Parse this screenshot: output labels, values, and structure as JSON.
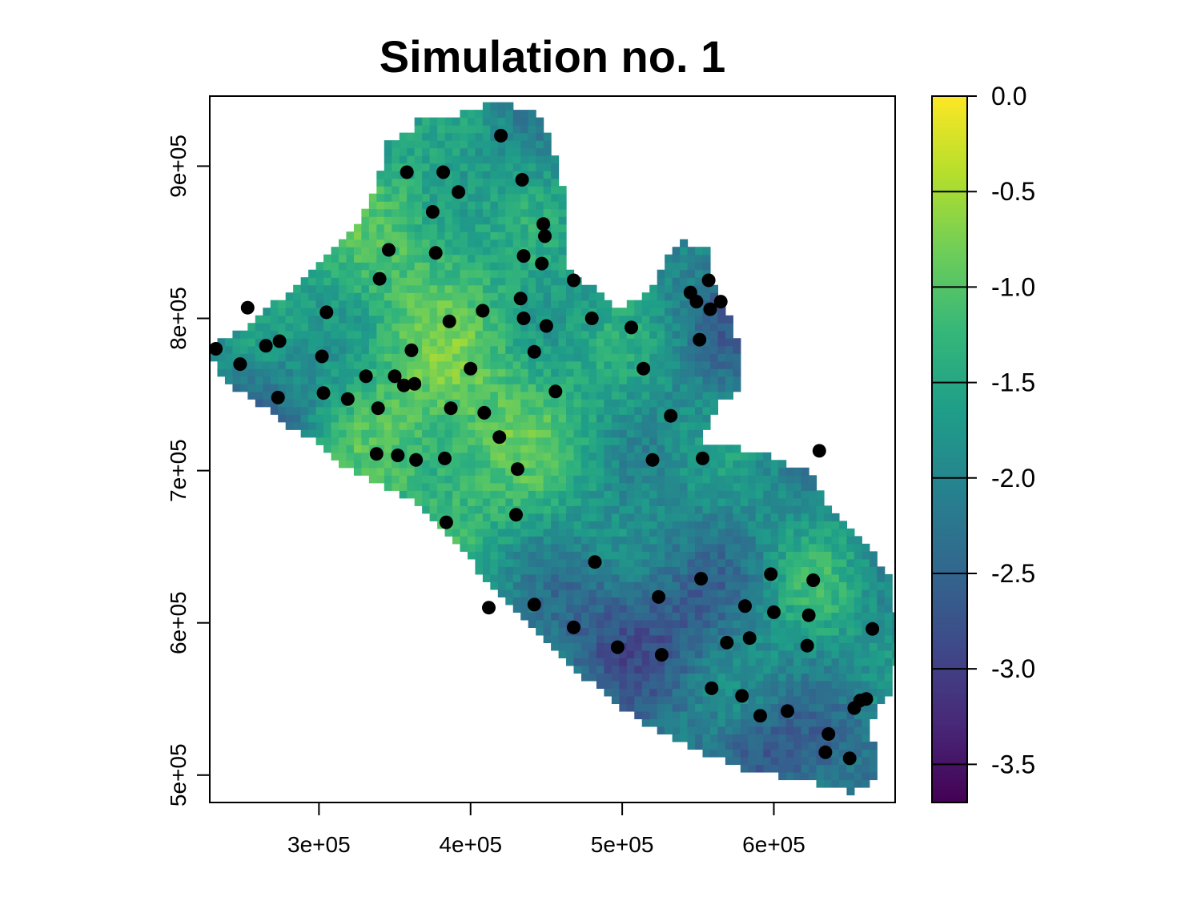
{
  "chart_data": {
    "type": "heatmap",
    "title": "Simulation no. 1",
    "xlabel": "",
    "ylabel": "",
    "xlim": [
      228000,
      680000
    ],
    "ylim": [
      482000,
      946000
    ],
    "x_ticks": [
      300000,
      400000,
      500000,
      600000
    ],
    "x_tick_labels": [
      "3e+05",
      "4e+05",
      "5e+05",
      "6e+05"
    ],
    "y_ticks": [
      500000,
      600000,
      700000,
      800000,
      900000
    ],
    "y_tick_labels": [
      "5e+05",
      "6e+05",
      "7e+05",
      "8e+05",
      "9e+05"
    ],
    "colorbar": {
      "palette": "viridis",
      "colors": [
        "#440154",
        "#482878",
        "#3E4A89",
        "#31688E",
        "#26828E",
        "#1F9E89",
        "#35B779",
        "#6DCD59",
        "#B4DE2C",
        "#FDE725"
      ],
      "range": [
        -3.7,
        0.0
      ],
      "ticks": [
        0.0,
        -0.5,
        -1.0,
        -1.5,
        -2.0,
        -2.5,
        -3.0,
        -3.5
      ],
      "tick_labels": [
        "0.0",
        "-0.5",
        "-1.0",
        "-1.5",
        "-2.0",
        "-2.5",
        "-3.0",
        "-3.5"
      ]
    },
    "region_boundary": [
      [
        228000,
        780000
      ],
      [
        240000,
        788000
      ],
      [
        255000,
        797000
      ],
      [
        268000,
        808000
      ],
      [
        282000,
        820000
      ],
      [
        298000,
        832000
      ],
      [
        310000,
        846000
      ],
      [
        325000,
        862000
      ],
      [
        338000,
        885000
      ],
      [
        345000,
        918000
      ],
      [
        360000,
        922000
      ],
      [
        365000,
        932000
      ],
      [
        400000,
        935000
      ],
      [
        420000,
        944000
      ],
      [
        448000,
        932000
      ],
      [
        458000,
        900000
      ],
      [
        465000,
        870000
      ],
      [
        465000,
        835000
      ],
      [
        480000,
        820000
      ],
      [
        500000,
        805000
      ],
      [
        520000,
        822000
      ],
      [
        528000,
        838000
      ],
      [
        540000,
        850000
      ],
      [
        555000,
        848000
      ],
      [
        560000,
        825000
      ],
      [
        572000,
        800000
      ],
      [
        578000,
        780000
      ],
      [
        578000,
        756000
      ],
      [
        562000,
        742000
      ],
      [
        552000,
        720000
      ],
      [
        574000,
        716000
      ],
      [
        595000,
        710000
      ],
      [
        622000,
        700000
      ],
      [
        635000,
        680000
      ],
      [
        650000,
        662000
      ],
      [
        662000,
        650000
      ],
      [
        676000,
        630000
      ],
      [
        682000,
        600000
      ],
      [
        680000,
        560000
      ],
      [
        664000,
        535000
      ],
      [
        668000,
        500000
      ],
      [
        652000,
        488000
      ],
      [
        632000,
        494000
      ],
      [
        620000,
        496000
      ],
      [
        600000,
        500000
      ],
      [
        578000,
        505000
      ],
      [
        560000,
        512000
      ],
      [
        535000,
        522000
      ],
      [
        505000,
        540000
      ],
      [
        480000,
        560000
      ],
      [
        455000,
        582000
      ],
      [
        432000,
        606000
      ],
      [
        410000,
        628000
      ],
      [
        392000,
        652000
      ],
      [
        378000,
        665000
      ],
      [
        362000,
        680000
      ],
      [
        340000,
        690000
      ],
      [
        318000,
        702000
      ],
      [
        298000,
        718000
      ],
      [
        276000,
        732000
      ],
      [
        258000,
        745000
      ],
      [
        236000,
        760000
      ]
    ],
    "series": [
      {
        "type": "scatter",
        "x": [
          232000,
          248000,
          253000,
          265000,
          274000,
          273000,
          302000,
          303000,
          305000,
          319000,
          331000,
          338000,
          339000,
          340000,
          346000,
          350000,
          352000,
          356000,
          358000,
          361000,
          363000,
          364000,
          375000,
          377000,
          382000,
          383000,
          384000,
          386000,
          387000,
          392000,
          400000,
          408000,
          409000,
          412000,
          419000,
          420000,
          431000,
          430000,
          433000,
          434000,
          435000,
          435000,
          442000,
          442000,
          447000,
          448000,
          449000,
          450000,
          456000,
          468000,
          468000,
          480000,
          482000,
          497000,
          506000,
          514000,
          520000,
          524000,
          526000,
          532000,
          545000,
          549000,
          551000,
          552000,
          553000,
          557000,
          558000,
          559000,
          565000,
          569000,
          579000,
          581000,
          584000,
          591000,
          598000,
          600000,
          609000,
          622000,
          623000,
          626000,
          630000,
          634000,
          636000,
          650000,
          653000,
          657000,
          661000,
          665000
        ],
        "y": [
          780000,
          770000,
          807000,
          782000,
          785000,
          748000,
          775000,
          751000,
          804000,
          747000,
          762000,
          711000,
          741000,
          826000,
          845000,
          762000,
          710000,
          756000,
          896000,
          779000,
          757000,
          707000,
          870000,
          843000,
          896000,
          708000,
          666000,
          798000,
          741000,
          883000,
          767000,
          805000,
          738000,
          610000,
          722000,
          920000,
          701000,
          671000,
          813000,
          891000,
          800000,
          841000,
          778000,
          612000,
          836000,
          862000,
          854000,
          795000,
          752000,
          597000,
          825000,
          800000,
          640000,
          584000,
          794000,
          767000,
          707000,
          617000,
          579000,
          736000,
          817000,
          811000,
          786000,
          629000,
          708000,
          825000,
          806000,
          557000,
          811000,
          587000,
          552000,
          611000,
          590000,
          539000,
          632000,
          607000,
          542000,
          585000,
          605000,
          628000,
          713000,
          515000,
          527000,
          511000,
          544000,
          549000,
          550000,
          596000
        ]
      }
    ]
  }
}
